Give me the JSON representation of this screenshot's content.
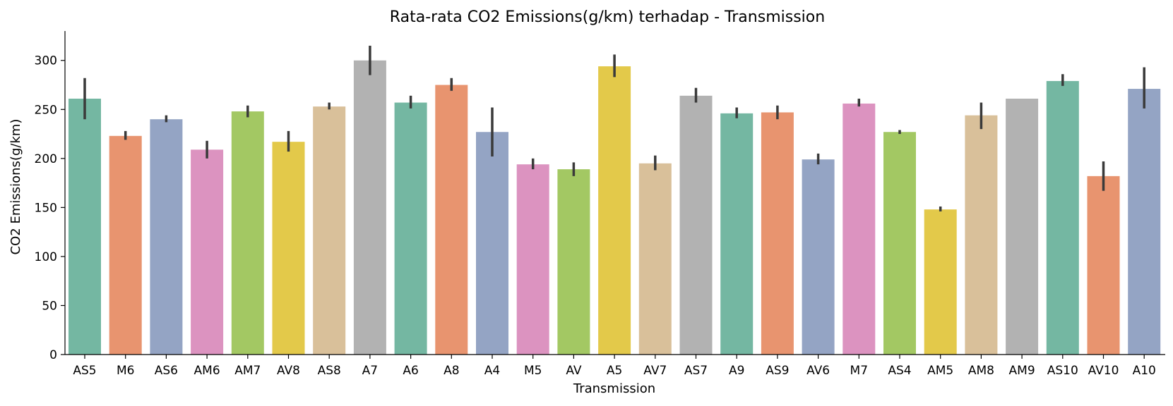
{
  "chart_data": {
    "type": "bar",
    "title": "Rata-rata CO2 Emissions(g/km) terhadap - Transmission",
    "xlabel": "Transmission",
    "ylabel": "CO2 Emissions(g/km)",
    "ylim": [
      0,
      330
    ],
    "yticks": [
      0,
      50,
      100,
      150,
      200,
      250,
      300
    ],
    "grid": false,
    "categories": [
      "AS5",
      "M6",
      "AS6",
      "AM6",
      "AM7",
      "AV8",
      "AS8",
      "A7",
      "A6",
      "A8",
      "A4",
      "M5",
      "AV",
      "A5",
      "AV7",
      "AS7",
      "A9",
      "AS9",
      "AV6",
      "M7",
      "AS4",
      "AM5",
      "AM8",
      "AM9",
      "AS10",
      "AV10",
      "A10"
    ],
    "values": [
      261,
      223,
      240,
      209,
      248,
      217,
      253,
      300,
      257,
      275,
      227,
      194,
      189,
      294,
      195,
      264,
      246,
      247,
      199,
      256,
      227,
      148,
      244,
      261,
      279,
      182,
      271
    ],
    "error_low": [
      240,
      219,
      237,
      200,
      242,
      207,
      250,
      285,
      251,
      269,
      202,
      189,
      182,
      283,
      188,
      257,
      241,
      240,
      194,
      253,
      225,
      146,
      230,
      261,
      274,
      167,
      251
    ],
    "error_high": [
      282,
      228,
      244,
      218,
      254,
      228,
      257,
      315,
      264,
      282,
      252,
      200,
      196,
      306,
      203,
      272,
      252,
      254,
      205,
      261,
      229,
      151,
      257,
      261,
      286,
      197,
      293
    ],
    "colors": [
      "#74b7a2",
      "#e8946f",
      "#94a4c4",
      "#dc93c0",
      "#a3c863",
      "#e3c94a",
      "#d9c09a",
      "#b2b2b2"
    ]
  }
}
